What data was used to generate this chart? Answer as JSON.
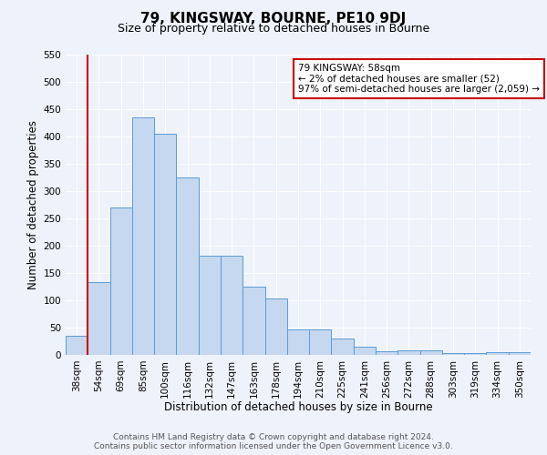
{
  "title": "79, KINGSWAY, BOURNE, PE10 9DJ",
  "subtitle": "Size of property relative to detached houses in Bourne",
  "xlabel": "Distribution of detached houses by size in Bourne",
  "ylabel": "Number of detached properties",
  "categories": [
    "38sqm",
    "54sqm",
    "69sqm",
    "85sqm",
    "100sqm",
    "116sqm",
    "132sqm",
    "147sqm",
    "163sqm",
    "178sqm",
    "194sqm",
    "210sqm",
    "225sqm",
    "241sqm",
    "256sqm",
    "272sqm",
    "288sqm",
    "303sqm",
    "319sqm",
    "334sqm",
    "350sqm"
  ],
  "values": [
    35,
    133,
    270,
    435,
    405,
    325,
    182,
    182,
    125,
    103,
    46,
    46,
    30,
    15,
    6,
    9,
    9,
    4,
    4,
    5,
    5
  ],
  "bar_color": "#c5d8f0",
  "bar_edge_color": "#5b9bd5",
  "vline_x": 1.0,
  "vline_color": "#cc0000",
  "annotation_text": "79 KINGSWAY: 58sqm\n← 2% of detached houses are smaller (52)\n97% of semi-detached houses are larger (2,059) →",
  "annotation_box_color": "#ffffff",
  "annotation_box_edge": "#cc0000",
  "ylim": [
    0,
    550
  ],
  "yticks": [
    0,
    50,
    100,
    150,
    200,
    250,
    300,
    350,
    400,
    450,
    500,
    550
  ],
  "background_color": "#eef2fa",
  "footer_line1": "Contains HM Land Registry data © Crown copyright and database right 2024.",
  "footer_line2": "Contains public sector information licensed under the Open Government Licence v3.0.",
  "title_fontsize": 11,
  "subtitle_fontsize": 9,
  "axis_label_fontsize": 8.5,
  "tick_fontsize": 7.5,
  "footer_fontsize": 6.5
}
